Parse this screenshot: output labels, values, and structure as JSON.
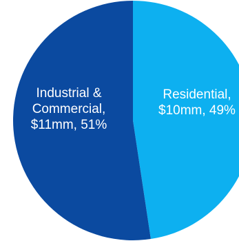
{
  "chart_data": {
    "type": "pie",
    "slices": [
      {
        "name": "Residential",
        "value": 10,
        "label_lines": [
          "Residential,",
          "$10mm, 49%"
        ],
        "color": "#0db0f0"
      },
      {
        "name": "Industrial & Commercial",
        "value": 11,
        "label_lines": [
          "Industrial &",
          "Commercial,",
          "$11mm, 51%"
        ],
        "color": "#0b4aa0"
      }
    ],
    "start_angle_deg": 0,
    "direction": "clockwise"
  }
}
